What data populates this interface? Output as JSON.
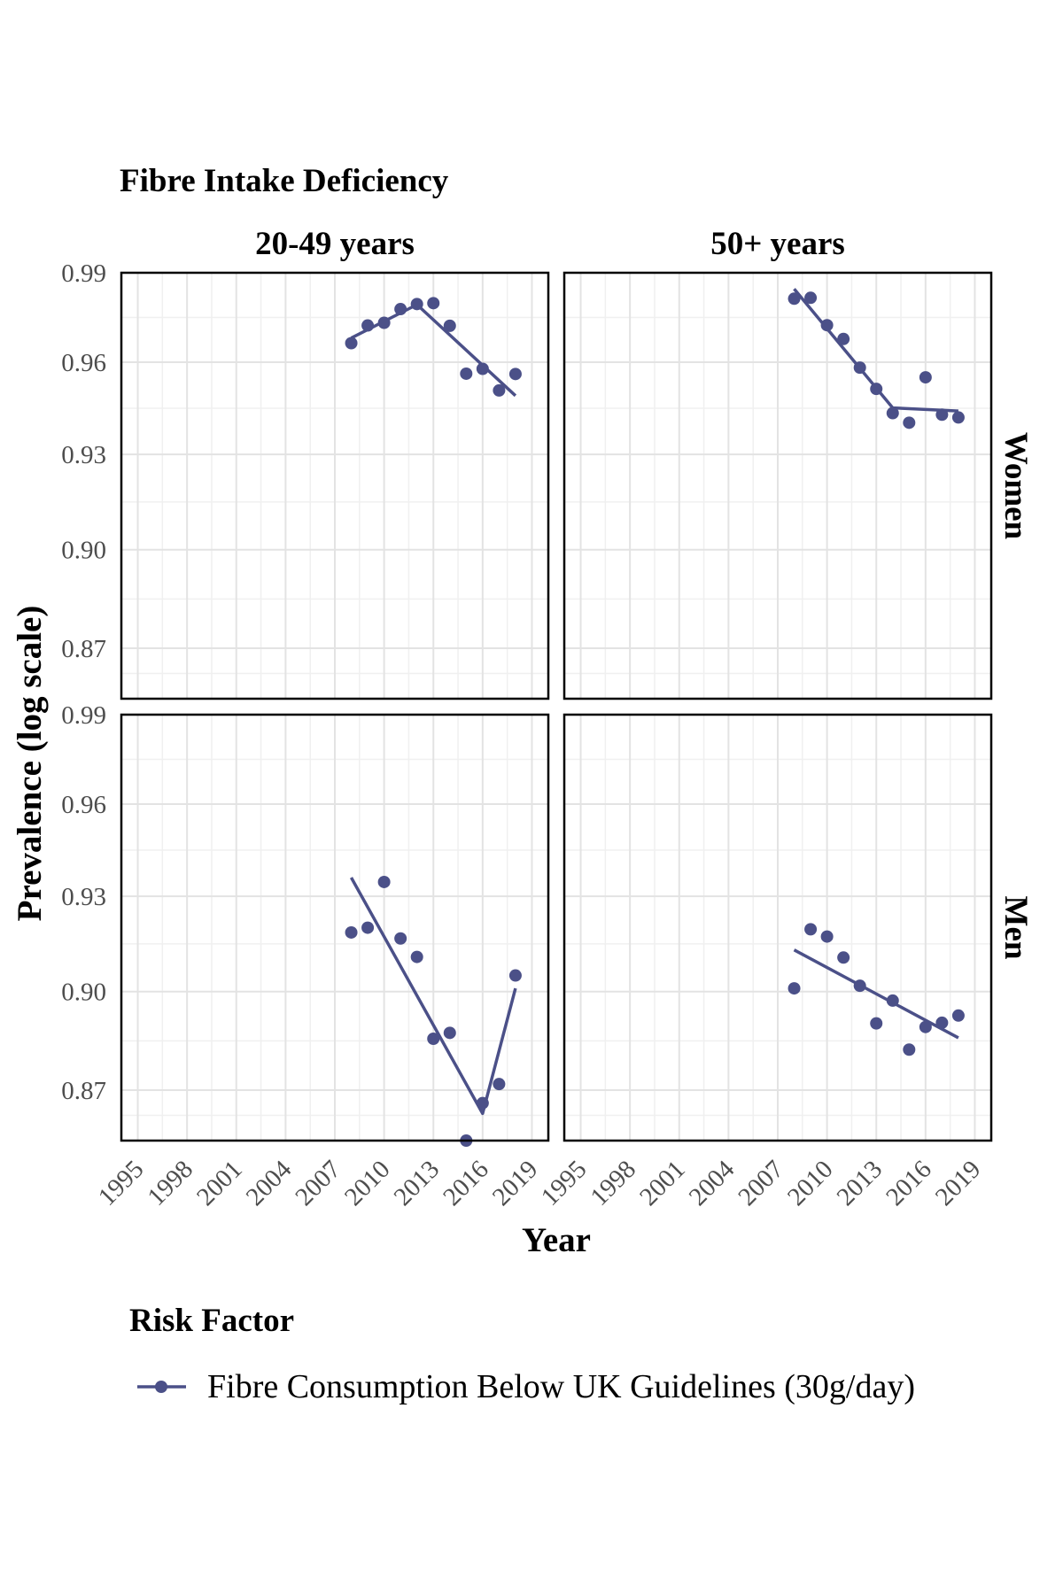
{
  "chart_data": {
    "type": "scatter",
    "title": "Fibre Intake Deficiency",
    "xlabel": "Year",
    "ylabel": "Prevalence (log scale)",
    "x_ticks": [
      "1995",
      "1998",
      "2001",
      "2004",
      "2007",
      "2010",
      "2013",
      "2016",
      "2019"
    ],
    "y_ticks": [
      "0.87",
      "0.90",
      "0.93",
      "0.96",
      "0.99"
    ],
    "xlim": [
      1994,
      2020
    ],
    "ylim": [
      0.855,
      0.99
    ],
    "y_scale": "log",
    "grid": true,
    "legend_title": "Risk Factor",
    "legend_position": "bottom",
    "color": "#4b5088",
    "col_facets": [
      "20-49 years",
      "50+ years"
    ],
    "row_facets": [
      "Women",
      "Men"
    ],
    "series": [
      {
        "name": "Fibre Consumption Below UK Guidelines (30g/day)",
        "panels": [
          {
            "col": "20-49 years",
            "row": "Women",
            "points": [
              [
                2008,
                0.9663
              ],
              [
                2009,
                0.9722
              ],
              [
                2010,
                0.9731
              ],
              [
                2011,
                0.9777
              ],
              [
                2012,
                0.9794
              ],
              [
                2013,
                0.9797
              ],
              [
                2014,
                0.9721
              ],
              [
                2015,
                0.9562
              ],
              [
                2016,
                0.9578
              ],
              [
                2017,
                0.9507
              ],
              [
                2018,
                0.9561
              ]
            ],
            "trend": [
              [
                2008,
                0.968
              ],
              [
                2012,
                0.9792
              ],
              [
                2018,
                0.949
              ]
            ]
          },
          {
            "col": "50+ years",
            "row": "Women",
            "points": [
              [
                2008,
                0.9812
              ],
              [
                2009,
                0.9815
              ],
              [
                2010,
                0.9723
              ],
              [
                2011,
                0.9677
              ],
              [
                2012,
                0.9582
              ],
              [
                2013,
                0.9512
              ],
              [
                2014,
                0.9433
              ],
              [
                2015,
                0.9402
              ],
              [
                2016,
                0.955
              ],
              [
                2017,
                0.9428
              ],
              [
                2018,
                0.9419
              ]
            ],
            "trend": [
              [
                2008,
                0.9845
              ],
              [
                2014,
                0.945
              ],
              [
                2018,
                0.944
              ]
            ]
          },
          {
            "col": "20-49 years",
            "row": "Men",
            "points": [
              [
                2008,
                0.9185
              ],
              [
                2009,
                0.92
              ],
              [
                2010,
                0.9346
              ],
              [
                2011,
                0.9166
              ],
              [
                2012,
                0.9108
              ],
              [
                2013,
                0.8855
              ],
              [
                2014,
                0.8873
              ],
              [
                2015,
                0.855
              ],
              [
                2016,
                0.8661
              ],
              [
                2017,
                0.8718
              ],
              [
                2018,
                0.905
              ]
            ],
            "trend": [
              [
                2008,
                0.936
              ],
              [
                2016,
                0.863
              ],
              [
                2018,
                0.901
              ]
            ]
          },
          {
            "col": "50+ years",
            "row": "Men",
            "points": [
              [
                2008,
                0.901
              ],
              [
                2009,
                0.9195
              ],
              [
                2010,
                0.9172
              ],
              [
                2011,
                0.9106
              ],
              [
                2012,
                0.9018
              ],
              [
                2013,
                0.8902
              ],
              [
                2014,
                0.8972
              ],
              [
                2015,
                0.8822
              ],
              [
                2016,
                0.8891
              ],
              [
                2017,
                0.8904
              ],
              [
                2018,
                0.8926
              ]
            ],
            "trend": [
              [
                2008,
                0.913
              ],
              [
                2018,
                0.8858
              ]
            ]
          }
        ]
      }
    ]
  }
}
